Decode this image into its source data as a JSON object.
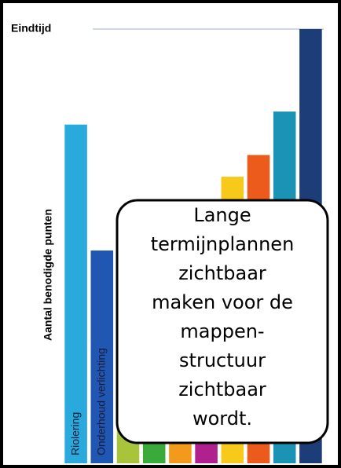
{
  "chart_data": {
    "type": "bar",
    "y_axis_label": "Aantal benodigde punten",
    "reference_line": {
      "label": "Eindtijd",
      "value": 100
    },
    "categories": [
      "Riolering",
      "Onderhoud verlichting",
      null,
      null,
      null,
      null,
      null,
      null,
      null,
      null
    ],
    "values": [
      78,
      49,
      30,
      35,
      40,
      45,
      66,
      71,
      81,
      100
    ],
    "colors": [
      "#29a9dc",
      "#1f57b3",
      "#a8c43a",
      "#3aaa3a",
      "#f39a1c",
      "#b0208f",
      "#f6c91a",
      "#ec5b1c",
      "#1a93b5",
      "#1c3d77"
    ],
    "ylim": [
      0,
      100
    ],
    "callout": [
      "Lange",
      "termijnplannen",
      "zichtbaar",
      "maken voor de",
      "mappen-",
      "structuur",
      "zichtbaar",
      "wordt."
    ]
  }
}
